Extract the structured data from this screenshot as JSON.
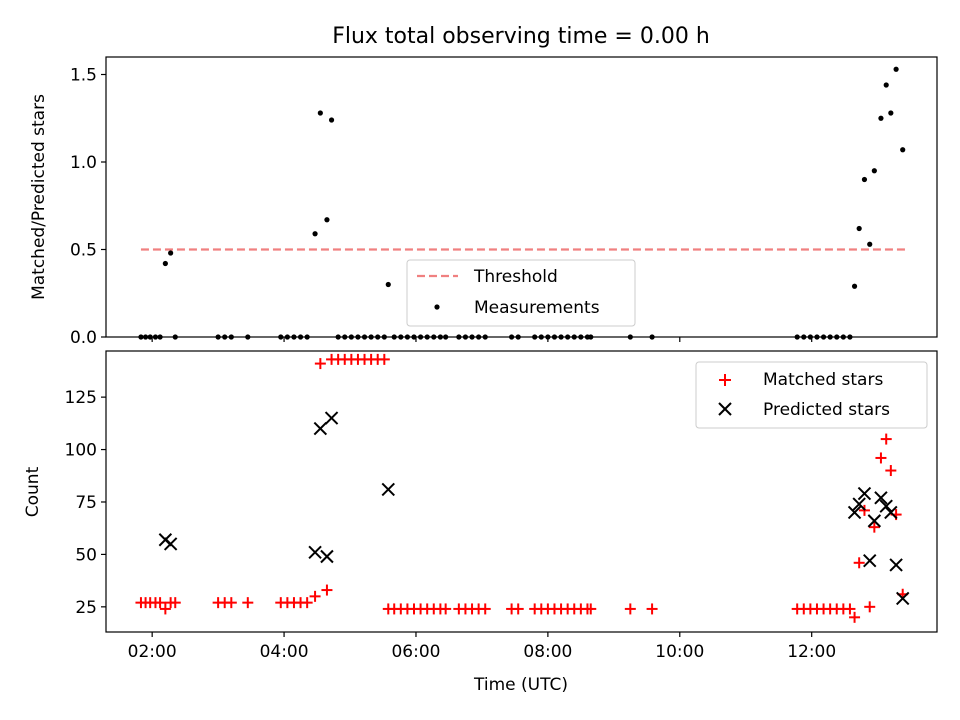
{
  "figure_title": "Flux total observing time = 0.00 h",
  "colors": {
    "threshold": "#f08080",
    "measurements": "#000000",
    "matched": "#ff0000",
    "predicted": "#000000"
  },
  "chart_data": [
    {
      "type": "scatter",
      "ylabel": "Matched/Predicted stars",
      "xlim": [
        1.3,
        13.9
      ],
      "ylim": [
        0,
        1.6
      ],
      "yticks": [
        0.0,
        0.5,
        1.0,
        1.5
      ],
      "ytick_labels": [
        "0.0",
        "0.5",
        "1.0",
        "1.5"
      ],
      "grid": false,
      "legend_position": "lower-center",
      "threshold": {
        "name": "Threshold",
        "y": 0.5,
        "x_range": [
          1.83,
          13.42
        ],
        "style": "dashed"
      },
      "series": [
        {
          "name": "Measurements",
          "marker": "dot",
          "points": [
            [
              1.83,
              0
            ],
            [
              1.9,
              0
            ],
            [
              1.97,
              0
            ],
            [
              2.05,
              0
            ],
            [
              2.12,
              0
            ],
            [
              2.2,
              0.42
            ],
            [
              2.28,
              0.48
            ],
            [
              2.35,
              0
            ],
            [
              3.0,
              0
            ],
            [
              3.1,
              0
            ],
            [
              3.2,
              0
            ],
            [
              3.45,
              0
            ],
            [
              3.95,
              0
            ],
            [
              4.05,
              0
            ],
            [
              4.15,
              0
            ],
            [
              4.25,
              0
            ],
            [
              4.35,
              0
            ],
            [
              4.47,
              0.59
            ],
            [
              4.55,
              1.28
            ],
            [
              4.65,
              0.67
            ],
            [
              4.72,
              1.24
            ],
            [
              4.82,
              0
            ],
            [
              4.92,
              0
            ],
            [
              5.02,
              0
            ],
            [
              5.12,
              0
            ],
            [
              5.22,
              0
            ],
            [
              5.32,
              0
            ],
            [
              5.42,
              0
            ],
            [
              5.52,
              0
            ],
            [
              5.58,
              0.3
            ],
            [
              5.67,
              0
            ],
            [
              5.77,
              0
            ],
            [
              5.87,
              0
            ],
            [
              5.97,
              0
            ],
            [
              6.07,
              0
            ],
            [
              6.17,
              0
            ],
            [
              6.27,
              0
            ],
            [
              6.37,
              0
            ],
            [
              6.45,
              0
            ],
            [
              6.65,
              0
            ],
            [
              6.75,
              0
            ],
            [
              6.85,
              0
            ],
            [
              6.95,
              0
            ],
            [
              7.05,
              0
            ],
            [
              7.45,
              0
            ],
            [
              7.55,
              0
            ],
            [
              7.8,
              0
            ],
            [
              7.9,
              0
            ],
            [
              8.0,
              0
            ],
            [
              8.1,
              0
            ],
            [
              8.2,
              0
            ],
            [
              8.3,
              0
            ],
            [
              8.4,
              0
            ],
            [
              8.5,
              0
            ],
            [
              8.6,
              0
            ],
            [
              8.65,
              0
            ],
            [
              9.25,
              0
            ],
            [
              9.58,
              0
            ],
            [
              11.78,
              0
            ],
            [
              11.88,
              0
            ],
            [
              11.98,
              0
            ],
            [
              12.08,
              0
            ],
            [
              12.18,
              0
            ],
            [
              12.28,
              0
            ],
            [
              12.38,
              0
            ],
            [
              12.48,
              0
            ],
            [
              12.58,
              0
            ],
            [
              12.65,
              0.29
            ],
            [
              12.72,
              0.62
            ],
            [
              12.8,
              0.9
            ],
            [
              12.88,
              0.53
            ],
            [
              12.95,
              0.95
            ],
            [
              13.05,
              1.25
            ],
            [
              13.13,
              1.44
            ],
            [
              13.2,
              1.28
            ],
            [
              13.28,
              1.53
            ],
            [
              13.38,
              1.07
            ]
          ]
        }
      ]
    },
    {
      "type": "scatter",
      "xlabel": "Time (UTC)",
      "ylabel": "Count",
      "xlim": [
        1.3,
        13.9
      ],
      "ylim": [
        13,
        147
      ],
      "xticks": [
        2,
        4,
        6,
        8,
        10,
        12
      ],
      "xtick_labels": [
        "02:00",
        "04:00",
        "06:00",
        "08:00",
        "10:00",
        "12:00"
      ],
      "yticks": [
        25,
        50,
        75,
        100,
        125
      ],
      "ytick_labels": [
        "25",
        "50",
        "75",
        "100",
        "125"
      ],
      "grid": false,
      "legend_position": "top-right",
      "series": [
        {
          "name": "Matched stars",
          "marker": "plus",
          "points": [
            [
              1.83,
              27
            ],
            [
              1.9,
              27
            ],
            [
              1.97,
              27
            ],
            [
              2.05,
              27
            ],
            [
              2.12,
              27
            ],
            [
              2.2,
              24
            ],
            [
              2.28,
              27
            ],
            [
              2.35,
              27
            ],
            [
              3.0,
              27
            ],
            [
              3.1,
              27
            ],
            [
              3.2,
              27
            ],
            [
              3.45,
              27
            ],
            [
              3.95,
              27
            ],
            [
              4.05,
              27
            ],
            [
              4.15,
              27
            ],
            [
              4.25,
              27
            ],
            [
              4.35,
              27
            ],
            [
              4.47,
              30
            ],
            [
              4.55,
              141
            ],
            [
              4.65,
              33
            ],
            [
              4.72,
              143
            ],
            [
              4.82,
              143
            ],
            [
              4.92,
              143
            ],
            [
              5.02,
              143
            ],
            [
              5.12,
              143
            ],
            [
              5.22,
              143
            ],
            [
              5.32,
              143
            ],
            [
              5.42,
              143
            ],
            [
              5.52,
              143
            ],
            [
              5.58,
              24
            ],
            [
              5.67,
              24
            ],
            [
              5.77,
              24
            ],
            [
              5.87,
              24
            ],
            [
              5.97,
              24
            ],
            [
              6.07,
              24
            ],
            [
              6.17,
              24
            ],
            [
              6.27,
              24
            ],
            [
              6.37,
              24
            ],
            [
              6.45,
              24
            ],
            [
              6.65,
              24
            ],
            [
              6.75,
              24
            ],
            [
              6.85,
              24
            ],
            [
              6.95,
              24
            ],
            [
              7.05,
              24
            ],
            [
              7.45,
              24
            ],
            [
              7.55,
              24
            ],
            [
              7.8,
              24
            ],
            [
              7.9,
              24
            ],
            [
              8.0,
              24
            ],
            [
              8.1,
              24
            ],
            [
              8.2,
              24
            ],
            [
              8.3,
              24
            ],
            [
              8.4,
              24
            ],
            [
              8.5,
              24
            ],
            [
              8.6,
              24
            ],
            [
              8.65,
              24
            ],
            [
              9.25,
              24
            ],
            [
              9.58,
              24
            ],
            [
              11.78,
              24
            ],
            [
              11.88,
              24
            ],
            [
              11.98,
              24
            ],
            [
              12.08,
              24
            ],
            [
              12.18,
              24
            ],
            [
              12.28,
              24
            ],
            [
              12.38,
              24
            ],
            [
              12.48,
              24
            ],
            [
              12.58,
              24
            ],
            [
              12.65,
              20
            ],
            [
              12.72,
              46
            ],
            [
              12.8,
              71
            ],
            [
              12.88,
              25
            ],
            [
              12.95,
              63
            ],
            [
              13.05,
              96
            ],
            [
              13.13,
              105
            ],
            [
              13.2,
              90
            ],
            [
              13.28,
              69
            ],
            [
              13.38,
              31
            ]
          ]
        },
        {
          "name": "Predicted stars",
          "marker": "x",
          "points": [
            [
              2.2,
              57
            ],
            [
              2.28,
              55
            ],
            [
              4.47,
              51
            ],
            [
              4.55,
              110
            ],
            [
              4.65,
              49
            ],
            [
              4.72,
              115
            ],
            [
              5.58,
              81
            ],
            [
              12.65,
              70
            ],
            [
              12.72,
              74
            ],
            [
              12.8,
              79
            ],
            [
              12.88,
              47
            ],
            [
              12.95,
              66
            ],
            [
              13.05,
              77
            ],
            [
              13.13,
              73
            ],
            [
              13.2,
              70
            ],
            [
              13.28,
              45
            ],
            [
              13.38,
              29
            ]
          ]
        }
      ]
    }
  ]
}
